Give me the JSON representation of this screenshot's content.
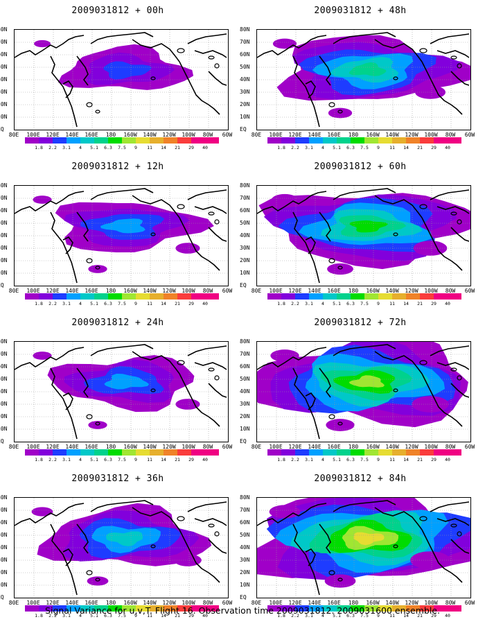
{
  "caption": "Signal Variance for u,v,T. Flight 16. Observation time 2009031812. 2009031600 ensemble.",
  "lat_labels": [
    "80N",
    "70N",
    "60N",
    "50N",
    "40N",
    "30N",
    "20N",
    "10N",
    "EQ"
  ],
  "lon_labels": [
    "80E",
    "100E",
    "120E",
    "140E",
    "160E",
    "180",
    "160W",
    "140W",
    "120W",
    "100W",
    "80W",
    "60W"
  ],
  "colorbar": {
    "labels": [
      "1.8",
      "2.2",
      "3.1",
      "4",
      "5.1",
      "6.3",
      "7.5",
      "9",
      "11",
      "14",
      "21",
      "29",
      "40"
    ],
    "colors": [
      "#a000c8",
      "#8200dc",
      "#1e3cff",
      "#00a0ff",
      "#00c8c8",
      "#00d28c",
      "#00dc00",
      "#a0e632",
      "#e6dc32",
      "#e6af2d",
      "#f08228",
      "#fa3c3c",
      "#f00082"
    ]
  },
  "panels": [
    {
      "title": "2009031812 + 00h"
    },
    {
      "title": "2009031812 + 48h"
    },
    {
      "title": "2009031812 + 12h"
    },
    {
      "title": "2009031812 + 60h"
    },
    {
      "title": "2009031812 + 24h"
    },
    {
      "title": "2009031812 + 72h"
    },
    {
      "title": "2009031812 + 36h"
    },
    {
      "title": "2009031812 + 84h"
    }
  ]
}
